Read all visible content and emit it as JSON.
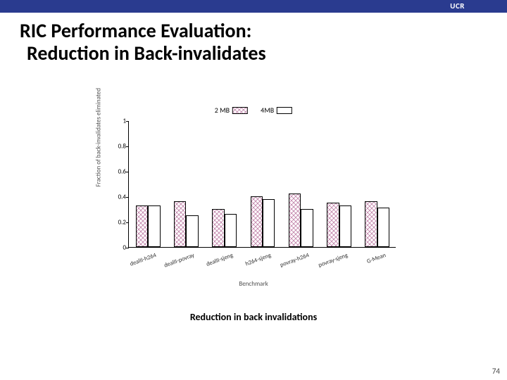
{
  "header": {
    "bar_color": "#2a3b8f",
    "ucr_label": "UCR"
  },
  "title": {
    "line1": "RIC Performance Evaluation:",
    "line2": "Reduction in Back-invalidates",
    "fontsize": 28,
    "color": "#000000"
  },
  "chart": {
    "type": "bar",
    "ylabel": "Fraction of back-invalidates eliminated",
    "xlabel": "Benchmark",
    "ylim": [
      0,
      1
    ],
    "yticks": [
      0,
      0.2,
      0.4,
      0.6,
      0.8,
      1
    ],
    "ytick_labels": [
      "0",
      "0.2",
      "0.4",
      "0.6",
      "0.8",
      "1"
    ],
    "categories": [
      "dealII-h264",
      "dealII-povray",
      "dealII-sjeng",
      "h264-sjeng",
      "povray-h264",
      "povray-sjeng",
      "G-Mean"
    ],
    "series": [
      {
        "name": "2 MB",
        "fill_pattern": "crosshatch",
        "fill_color": "#d9a6c2",
        "border_color": "#000000",
        "values": [
          0.33,
          0.36,
          0.3,
          0.4,
          0.42,
          0.35,
          0.36
        ]
      },
      {
        "name": "4MB",
        "fill_pattern": "none",
        "fill_color": "#ffffff",
        "border_color": "#000000",
        "values": [
          0.33,
          0.25,
          0.26,
          0.38,
          0.3,
          0.33,
          0.31
        ]
      }
    ],
    "bar_width": 0.35,
    "group_gap": 0.3,
    "background_color": "#ffffff",
    "label_fontsize": 9,
    "tick_fontsize": 9
  },
  "caption": "Reduction in back invalidations",
  "page_number": "74"
}
